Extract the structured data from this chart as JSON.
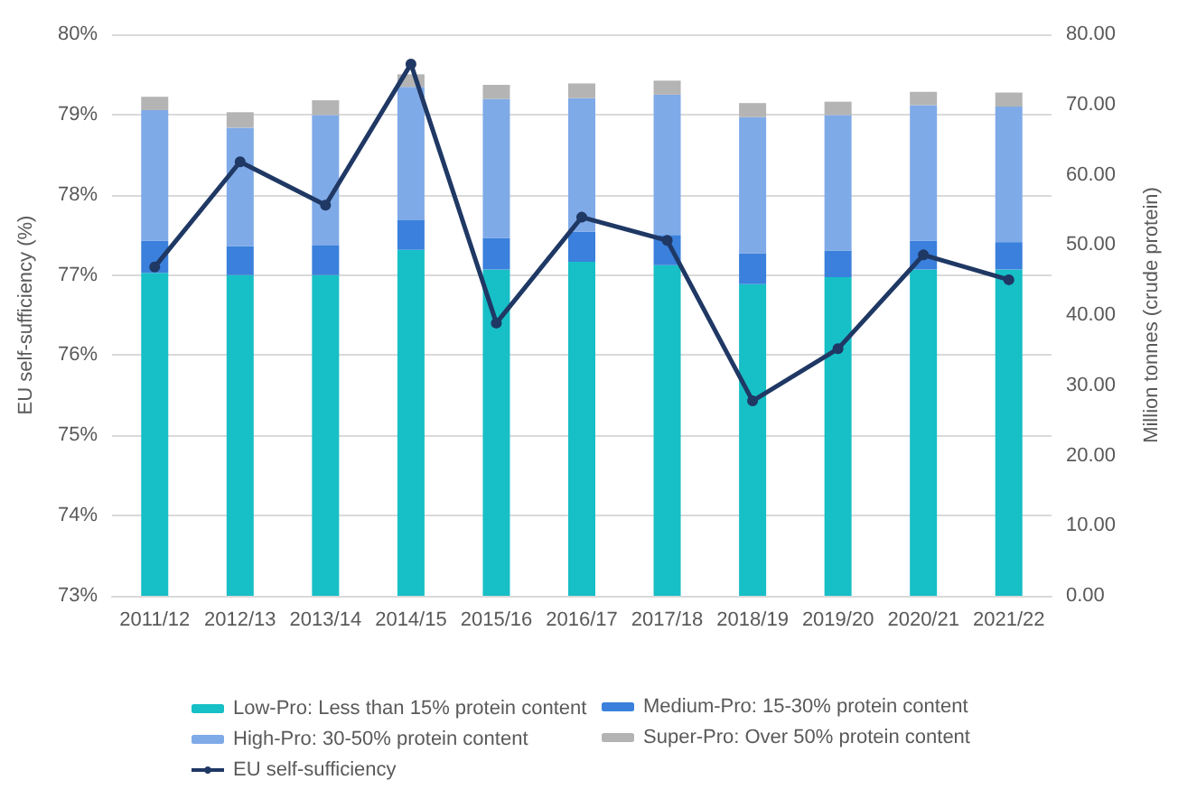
{
  "chart_data": {
    "type": "bar",
    "stacked": true,
    "categories": [
      "2011/12",
      "2012/13",
      "2013/14",
      "2014/15",
      "2015/16",
      "2016/17",
      "2017/18",
      "2018/19",
      "2019/20",
      "2020/21",
      "2021/22"
    ],
    "ylabel": "EU self-sufficiency (%)",
    "y2label": "Million tonnes (crude protein)",
    "ylim": [
      73,
      80
    ],
    "yticks": [
      {
        "value": 73,
        "label": "73%"
      },
      {
        "value": 74,
        "label": "74%"
      },
      {
        "value": 75,
        "label": "75%"
      },
      {
        "value": 76,
        "label": "76%"
      },
      {
        "value": 77,
        "label": "77%"
      },
      {
        "value": 78,
        "label": "78%"
      },
      {
        "value": 79,
        "label": "79%"
      },
      {
        "value": 80,
        "label": "80%"
      }
    ],
    "y2lim": [
      0,
      80
    ],
    "y2ticks": [
      {
        "value": 0,
        "label": "0.00"
      },
      {
        "value": 10,
        "label": "10.00"
      },
      {
        "value": 20,
        "label": "20.00"
      },
      {
        "value": 30,
        "label": "30.00"
      },
      {
        "value": 40,
        "label": "40.00"
      },
      {
        "value": 50,
        "label": "50.00"
      },
      {
        "value": 60,
        "label": "60.00"
      },
      {
        "value": 70,
        "label": "70.00"
      },
      {
        "value": 80,
        "label": "80.00"
      }
    ],
    "grid": "y",
    "legend": "bottom",
    "series": [
      {
        "name": "Low-Pro: Less than 15% protein content",
        "color": "#17bfc6",
        "axis": "y2",
        "values": [
          46.0,
          45.7,
          45.7,
          49.3,
          46.5,
          47.6,
          47.1,
          44.4,
          45.4,
          46.5,
          46.5
        ]
      },
      {
        "name": "Medium-Pro: 15-30% protein content",
        "color": "#3a80dc",
        "axis": "y2",
        "values": [
          4.6,
          4.1,
          4.2,
          4.2,
          4.5,
          4.3,
          4.3,
          4.4,
          3.8,
          4.1,
          3.9
        ]
      },
      {
        "name": "High-Pro: 30-50% protein content",
        "color": "#7faae8",
        "axis": "y2",
        "values": [
          18.6,
          16.9,
          18.6,
          19.0,
          19.8,
          19.0,
          20.0,
          19.4,
          19.3,
          19.3,
          19.3
        ]
      },
      {
        "name": "Super-Pro: Over 50% protein content",
        "color": "#b4b4b4",
        "axis": "y2",
        "values": [
          1.9,
          2.2,
          2.1,
          1.8,
          2.0,
          2.1,
          2.0,
          2.0,
          1.9,
          1.9,
          2.0
        ]
      },
      {
        "name": "EU self-sufficiency",
        "type": "line",
        "color": "#1f3864",
        "marker": "circle",
        "values": [
          77.1,
          78.41,
          77.87,
          79.63,
          76.4,
          77.72,
          77.43,
          75.43,
          76.08,
          77.25,
          76.94
        ]
      }
    ]
  }
}
